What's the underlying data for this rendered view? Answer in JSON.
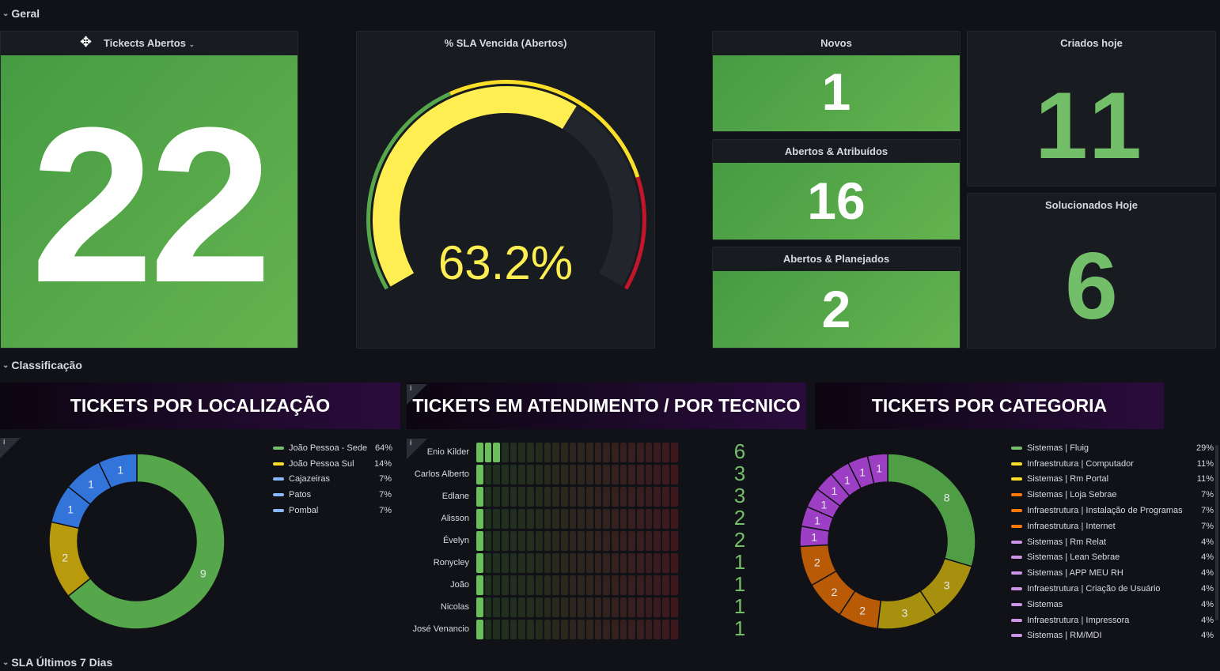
{
  "rows": {
    "geral": "Geral",
    "classificacao": "Classificação",
    "sla7": "SLA Últimos 7 Dias"
  },
  "stats": {
    "abertos": {
      "title": "Tickects Abertos",
      "value": "22"
    },
    "novos": {
      "title": "Novos",
      "value": "1"
    },
    "atribuidos": {
      "title": "Abertos & Atribuídos",
      "value": "16"
    },
    "planejados": {
      "title": "Abertos & Planejados",
      "value": "2"
    },
    "criados": {
      "title": "Criados hoje",
      "value": "11"
    },
    "solucionados": {
      "title": "Solucionados Hoje",
      "value": "6"
    }
  },
  "gauge": {
    "title": "% SLA Vencida (Abertos)",
    "value": 63.2,
    "display": "63.2%",
    "min": 0,
    "max": 100,
    "thresholds": [
      {
        "from": 0,
        "color": "#56a64b"
      },
      {
        "from": 40,
        "color": "#fade2a"
      },
      {
        "from": 80,
        "color": "#c4162a"
      }
    ],
    "bar_color": "#ffee52"
  },
  "banners": {
    "localizacao": "TICKETS POR LOCALIZAÇÃO",
    "tecnico": "TICKETS EM ATENDIMENTO / POR TECNICO",
    "categoria": "TICKETS POR CATEGORIA"
  },
  "info_icon": "i",
  "chart_data": [
    {
      "type": "pie",
      "title": "TICKETS POR LOCALIZAÇÃO",
      "series": [
        {
          "name": "João Pessoa - Sede",
          "value": 9,
          "pct": "64%",
          "color": "#56a64b"
        },
        {
          "name": "João Pessoa Sul",
          "value": 2,
          "pct": "14%",
          "color": "#b89a0c"
        },
        {
          "name": "Cajazeiras",
          "value": 1,
          "pct": "7%",
          "color": "#3274d9"
        },
        {
          "name": "Patos",
          "value": 1,
          "pct": "7%",
          "color": "#3274d9"
        },
        {
          "name": "Pombal",
          "value": 1,
          "pct": "7%",
          "color": "#3274d9"
        }
      ],
      "legend_colors": [
        "#73bf69",
        "#fade2a",
        "#8ab8ff",
        "#8ab8ff",
        "#8ab8ff"
      ]
    },
    {
      "type": "bar",
      "title": "TICKETS EM ATENDIMENTO / POR TECNICO",
      "max": 48,
      "categories": [
        "Enio Kilder",
        "Carlos Alberto",
        "Edlane",
        "Alisson",
        "Évelyn",
        "Ronycley",
        "João",
        "Nicolas",
        "José Venancio"
      ],
      "values": [
        6,
        3,
        3,
        2,
        2,
        1,
        1,
        1,
        1
      ]
    },
    {
      "type": "pie",
      "title": "TICKETS POR CATEGORIA",
      "series": [
        {
          "name": "Sistemas | Fluig",
          "value": 8,
          "pct": "29%",
          "color": "#4f9e45",
          "lc": "#73bf69"
        },
        {
          "name": "Infraestrutura | Computador",
          "value": 3,
          "pct": "11%",
          "color": "#a6900d",
          "lc": "#fade2a"
        },
        {
          "name": "Sistemas | Rm Portal",
          "value": 3,
          "pct": "11%",
          "color": "#a6900d",
          "lc": "#fade2a"
        },
        {
          "name": "Sistemas | Loja Sebrae",
          "value": 2,
          "pct": "7%",
          "color": "#b85a06",
          "lc": "#ff780a"
        },
        {
          "name": "Infraestrutura | Instalação de Programas",
          "value": 2,
          "pct": "7%",
          "color": "#b85a06",
          "lc": "#ff780a"
        },
        {
          "name": "Infraestrutura | Internet",
          "value": 2,
          "pct": "7%",
          "color": "#b85a06",
          "lc": "#ff780a"
        },
        {
          "name": "Sistemas | Rm Relat",
          "value": 1,
          "pct": "4%",
          "color": "#9c3fc4",
          "lc": "#ca95e5"
        },
        {
          "name": "Sistemas | Lean Sebrae",
          "value": 1,
          "pct": "4%",
          "color": "#9c3fc4",
          "lc": "#ca95e5"
        },
        {
          "name": "Sistemas | APP MEU RH",
          "value": 1,
          "pct": "4%",
          "color": "#9c3fc4",
          "lc": "#ca95e5"
        },
        {
          "name": "Infraestrutura | Criação de Usuário",
          "value": 1,
          "pct": "4%",
          "color": "#9c3fc4",
          "lc": "#ca95e5"
        },
        {
          "name": "Sistemas",
          "value": 1,
          "pct": "4%",
          "color": "#9c3fc4",
          "lc": "#ca95e5"
        },
        {
          "name": "Infraestrutura | Impressora",
          "value": 1,
          "pct": "4%",
          "color": "#9c3fc4",
          "lc": "#ca95e5"
        },
        {
          "name": "Sistemas | RM/MDI",
          "value": 1,
          "pct": "4%",
          "color": "#9c3fc4",
          "lc": "#ca95e5"
        }
      ]
    }
  ]
}
